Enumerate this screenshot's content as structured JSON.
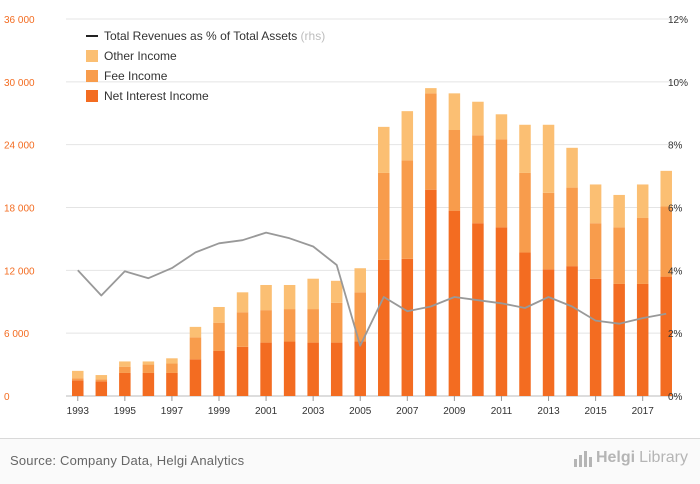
{
  "chart_data": {
    "type": "bar",
    "stacked": true,
    "categories": [
      "1993",
      "1994",
      "1995",
      "1996",
      "1997",
      "1998",
      "1999",
      "2000",
      "2001",
      "2002",
      "2003",
      "2004",
      "2005",
      "2006",
      "2007",
      "2008",
      "2009",
      "2010",
      "2011",
      "2012",
      "2013",
      "2014",
      "2015",
      "2016",
      "2017",
      "2018"
    ],
    "series": [
      {
        "name": "Net Interest Income",
        "color": "#f36c21",
        "values": [
          1500,
          1400,
          2200,
          2200,
          2200,
          3500,
          4300,
          4700,
          5100,
          5200,
          5100,
          5100,
          5200,
          13000,
          13100,
          19700,
          17700,
          16500,
          16100,
          13700,
          12100,
          12400,
          11200,
          10700,
          10700,
          11400
        ]
      },
      {
        "name": "Fee Income",
        "color": "#f89c4c",
        "values": [
          200,
          200,
          600,
          800,
          900,
          2100,
          2700,
          3300,
          3100,
          3100,
          3200,
          3800,
          4700,
          8300,
          9400,
          9200,
          7700,
          8400,
          8400,
          7600,
          7300,
          7500,
          5300,
          5400,
          6300,
          6700
        ]
      },
      {
        "name": "Other Income",
        "color": "#fbbf73",
        "values": [
          700,
          400,
          500,
          300,
          500,
          1000,
          1500,
          1900,
          2400,
          2300,
          2900,
          2100,
          2300,
          4400,
          4700,
          500,
          3500,
          3200,
          2400,
          4600,
          6500,
          3800,
          3700,
          3100,
          3200,
          3400
        ]
      }
    ],
    "line_series": {
      "name": "Total Revenues as % of Total Assets",
      "axis_note": "(rhs)",
      "color": "#999999",
      "values": [
        4.0,
        3.2,
        3.97,
        3.75,
        4.07,
        4.57,
        4.86,
        4.96,
        5.2,
        5.02,
        4.76,
        4.17,
        1.6,
        3.15,
        2.7,
        2.85,
        3.15,
        3.05,
        2.95,
        2.8,
        3.15,
        2.85,
        2.4,
        2.3,
        2.48,
        2.62
      ]
    },
    "y_left": {
      "min": 0,
      "max": 36000,
      "ticks": [
        0,
        6000,
        12000,
        18000,
        24000,
        30000,
        36000
      ],
      "tick_labels": [
        "0",
        "6 000",
        "12 000",
        "18 000",
        "24 000",
        "30 000",
        "36 000"
      ],
      "color": "#f36c21"
    },
    "y_right": {
      "min": 0,
      "max": 12,
      "ticks": [
        0,
        2,
        4,
        6,
        8,
        10,
        12
      ],
      "tick_labels": [
        "0%",
        "2%",
        "4%",
        "6%",
        "8%",
        "10%",
        "12%"
      ]
    },
    "x_tick_labels": [
      "1993",
      "1995",
      "1997",
      "1999",
      "2001",
      "2003",
      "2005",
      "2007",
      "2009",
      "2011",
      "2013",
      "2015",
      "2017"
    ],
    "legend": {
      "placement": "top-left",
      "items": [
        {
          "label": "Total Revenues as % of Total Assets",
          "suffix": "(rhs)",
          "kind": "line",
          "color": "#222222"
        },
        {
          "label": "Other Income",
          "kind": "box",
          "color": "#fbbf73"
        },
        {
          "label": "Fee Income",
          "kind": "box",
          "color": "#f89c4c"
        },
        {
          "label": "Net Interest Income",
          "kind": "box",
          "color": "#f36c21"
        }
      ]
    },
    "grid": true
  },
  "footer": {
    "source": "Source: Company Data, Helgi Analytics",
    "brand_part1": "Helgi",
    "brand_part2": "Library"
  }
}
